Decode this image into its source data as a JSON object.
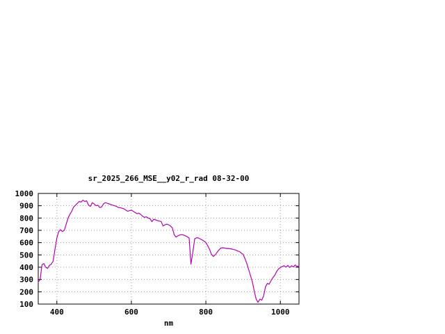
{
  "page": {
    "background_color": "#ffffff"
  },
  "chart_data": {
    "type": "line",
    "title": "sr_2025_266_MSE__y02_r_rad 08-32-00",
    "xlabel": "nm",
    "ylabel": "",
    "xlim": [
      350,
      1050
    ],
    "ylim": [
      100,
      1000
    ],
    "xticks": [
      400,
      600,
      800,
      1000
    ],
    "yticks": [
      100,
      200,
      300,
      400,
      500,
      600,
      700,
      800,
      900,
      1000
    ],
    "grid": true,
    "legend": "none",
    "line_color": "#b400b4",
    "series": [
      {
        "name": "sr_2025_266_MSE__y02_r_rad",
        "x_start": 350,
        "x_step": 5,
        "values": [
          280,
          300,
          420,
          430,
          400,
          390,
          415,
          425,
          450,
          545,
          640,
          690,
          705,
          690,
          700,
          750,
          800,
          830,
          855,
          890,
          905,
          920,
          935,
          930,
          945,
          935,
          940,
          905,
          895,
          925,
          915,
          900,
          905,
          885,
          890,
          915,
          925,
          920,
          915,
          910,
          905,
          900,
          895,
          885,
          885,
          880,
          875,
          865,
          855,
          860,
          865,
          855,
          845,
          835,
          840,
          830,
          815,
          805,
          810,
          800,
          795,
          770,
          790,
          785,
          780,
          775,
          772,
          735,
          745,
          750,
          745,
          735,
          720,
          665,
          645,
          655,
          662,
          665,
          662,
          655,
          648,
          638,
          425,
          520,
          630,
          640,
          638,
          630,
          622,
          612,
          600,
          575,
          545,
          505,
          488,
          500,
          520,
          540,
          555,
          558,
          556,
          552,
          553,
          550,
          548,
          543,
          540,
          532,
          528,
          515,
          505,
          470,
          430,
          380,
          330,
          280,
          205,
          140,
          115,
          140,
          132,
          165,
          240,
          268,
          262,
          290,
          315,
          335,
          365,
          385,
          398,
          405,
          412,
          400,
          415,
          398,
          412,
          402,
          418,
          405,
          412
        ]
      }
    ]
  }
}
